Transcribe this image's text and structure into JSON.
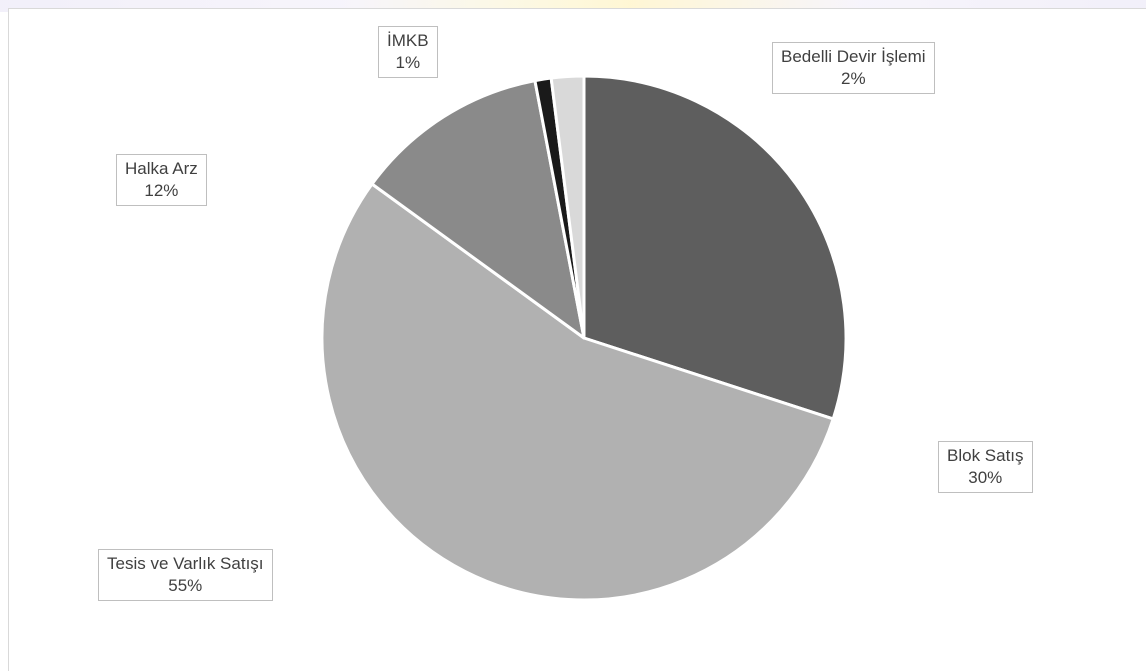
{
  "chart_data": {
    "type": "pie",
    "title": "",
    "slices": [
      {
        "label": "Blok Satış",
        "value": 30,
        "pct_label": "30%",
        "color": "#5e5e5e"
      },
      {
        "label": "Tesis ve Varlık Satışı",
        "value": 55,
        "pct_label": "55%",
        "color": "#b1b1b1"
      },
      {
        "label": "Halka Arz",
        "value": 12,
        "pct_label": "12%",
        "color": "#8a8a8a"
      },
      {
        "label": "İMKB",
        "value": 1,
        "pct_label": "1%",
        "color": "#1a1a1a"
      },
      {
        "label": "Bedelli Devir İşlemi",
        "value": 2,
        "pct_label": "2%",
        "color": "#d9d9d9"
      }
    ],
    "start_angle": "12 o'clock",
    "direction": "clockwise",
    "legend": "none"
  }
}
